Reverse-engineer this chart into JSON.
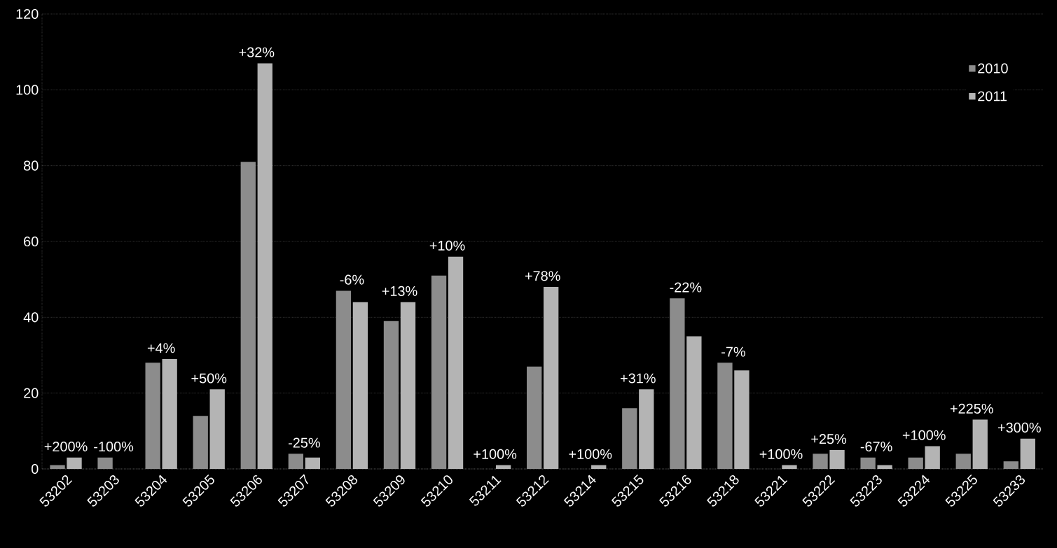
{
  "chart_data": {
    "type": "bar",
    "categories": [
      "53202",
      "53203",
      "53204",
      "53205",
      "53206",
      "53207",
      "53208",
      "53209",
      "53210",
      "53211",
      "53212",
      "53214",
      "53215",
      "53216",
      "53218",
      "53221",
      "53222",
      "53223",
      "53224",
      "53225",
      "53233"
    ],
    "series": [
      {
        "name": "2010",
        "color": "#8c8c8c",
        "values": [
          1,
          3,
          28,
          14,
          81,
          4,
          47,
          39,
          51,
          0,
          27,
          0,
          16,
          45,
          28,
          0,
          4,
          3,
          3,
          4,
          2
        ]
      },
      {
        "name": "2011",
        "color": "#b4b4b4",
        "values": [
          3,
          0,
          29,
          21,
          107,
          3,
          44,
          44,
          56,
          1,
          48,
          1,
          21,
          35,
          26,
          1,
          5,
          1,
          6,
          13,
          8
        ]
      }
    ],
    "ylim": [
      0,
      120
    ],
    "yticks": [
      0,
      20,
      40,
      60,
      80,
      100,
      120
    ],
    "grid": "y",
    "legend": "top right",
    "annotations": [
      {
        "text": "+200%",
        "x": "53202",
        "y": 3
      },
      {
        "text": "-100%",
        "x": "53203",
        "y": 3
      },
      {
        "text": "+4%",
        "x": "53204",
        "y": 29
      },
      {
        "text": "+50%",
        "x": "53205",
        "y": 21
      },
      {
        "text": "+32%",
        "x": "53206",
        "y": 107
      },
      {
        "text": "-25%",
        "x": "53207",
        "y": 4
      },
      {
        "text": "-6%",
        "x": "53208",
        "y": 47
      },
      {
        "text": "+13%",
        "x": "53209",
        "y": 44
      },
      {
        "text": "+10%",
        "x": "53210",
        "y": 56
      },
      {
        "text": "+100%",
        "x": "53211",
        "y": 1
      },
      {
        "text": "+78%",
        "x": "53212",
        "y": 48
      },
      {
        "text": "+100%",
        "x": "53214",
        "y": 1
      },
      {
        "text": "+31%",
        "x": "53215",
        "y": 21
      },
      {
        "text": "-22%",
        "x": "53216",
        "y": 45
      },
      {
        "text": "-7%",
        "x": "53218",
        "y": 28
      },
      {
        "text": "+100%",
        "x": "53221",
        "y": 1
      },
      {
        "text": "+25%",
        "x": "53222",
        "y": 5
      },
      {
        "text": "-67%",
        "x": "53223",
        "y": 3
      },
      {
        "text": "+100%",
        "x": "53224",
        "y": 6
      },
      {
        "text": "+225%",
        "x": "53225",
        "y": 13
      },
      {
        "text": "+300%",
        "x": "53233",
        "y": 8
      }
    ]
  }
}
